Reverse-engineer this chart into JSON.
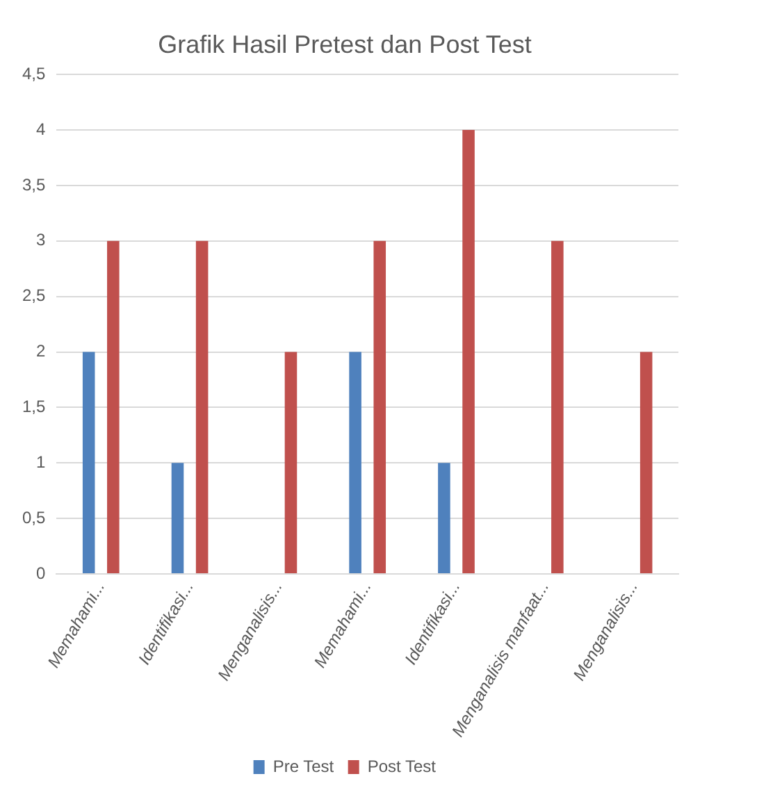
{
  "chart_data": {
    "type": "bar",
    "title": "Grafik Hasil Pretest dan Post Test",
    "categories": [
      "Memahami...",
      "Identifikasi...",
      "Menganalisis...",
      "Memahami...",
      "Identifikasi...",
      "Menganalisis manfaat...",
      "Menganalisis..."
    ],
    "series": [
      {
        "name": "Pre Test",
        "color": "#4f81bd",
        "values": [
          2,
          1,
          0,
          2,
          1,
          0,
          0
        ]
      },
      {
        "name": "Post Test",
        "color": "#c0504d",
        "values": [
          3,
          3,
          2,
          3,
          4,
          3,
          2
        ]
      }
    ],
    "ylim": [
      0,
      4.5
    ],
    "yticks": [
      0,
      {
        "value": 0.5,
        "label": "0,5"
      },
      1,
      {
        "value": 1.5,
        "label": "1,5"
      },
      2,
      {
        "value": 2.5,
        "label": "2,5"
      },
      3,
      {
        "value": 3.5,
        "label": "3,5"
      },
      4,
      {
        "value": 4.5,
        "label": "4,5"
      }
    ],
    "grid": "y",
    "legend": "bottom"
  }
}
